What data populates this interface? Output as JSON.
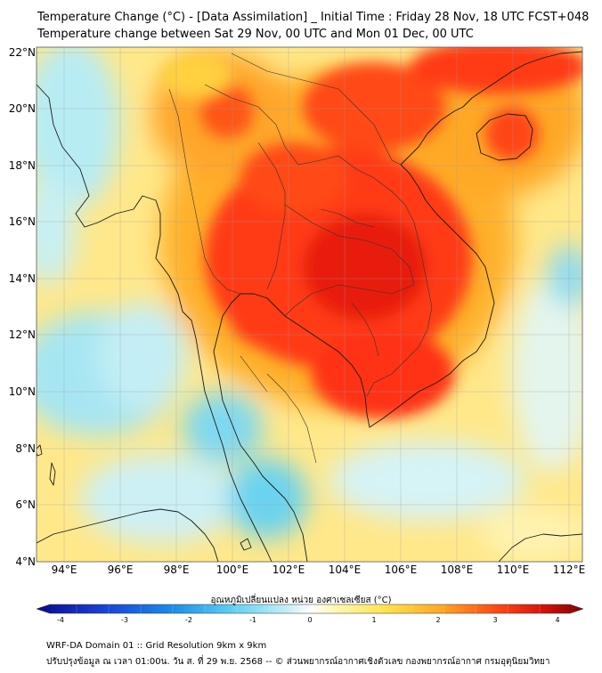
{
  "title_line1": "Temperature Change (°C) - [Data Assimilation] _ Initial Time : Friday 28 Nov, 18 UTC FCST+048",
  "title_line2": "Temperature change between Sat 29 Nov, 00 UTC and Mon 01 Dec, 00 UTC",
  "lat_labels": [
    "22°N",
    "20°N",
    "18°N",
    "16°N",
    "14°N",
    "12°N",
    "10°N",
    "8°N",
    "6°N",
    "4°N"
  ],
  "lon_labels": [
    "94°E",
    "96°E",
    "98°E",
    "100°E",
    "102°E",
    "104°E",
    "106°E",
    "108°E",
    "110°E",
    "112°E"
  ],
  "colorbar": {
    "title": "อุณหภูมิเปลี่ยนแปลง หน่วย องศาเซลเซียส (°C)",
    "ticks": [
      "-4",
      "-3",
      "-2",
      "-1",
      "0",
      "1",
      "2",
      "3",
      "4"
    ],
    "range": [
      -4,
      4
    ]
  },
  "footer_line1": "WRF-DA Domain 01 :: Grid Resolution 9km x 9km",
  "footer_line2": "ปรับปรุงข้อมูล ณ เวลา 01:00น. วัน ส. ที่ 29 พ.ย. 2568 -- © ส่วนพยากรณ์อากาศเชิงตัวเลข กองพยากรณ์อากาศ กรมอุตุนิยมวิทยา",
  "colors": {
    "cold": "#6ad3f0",
    "neutral_cold": "#d8f4f6",
    "neutral_warm": "#fff9c8",
    "warm": "#ffd63a",
    "orange": "#ff9a1f",
    "hot": "#ff3214",
    "very_hot": "#e81a0c"
  }
}
